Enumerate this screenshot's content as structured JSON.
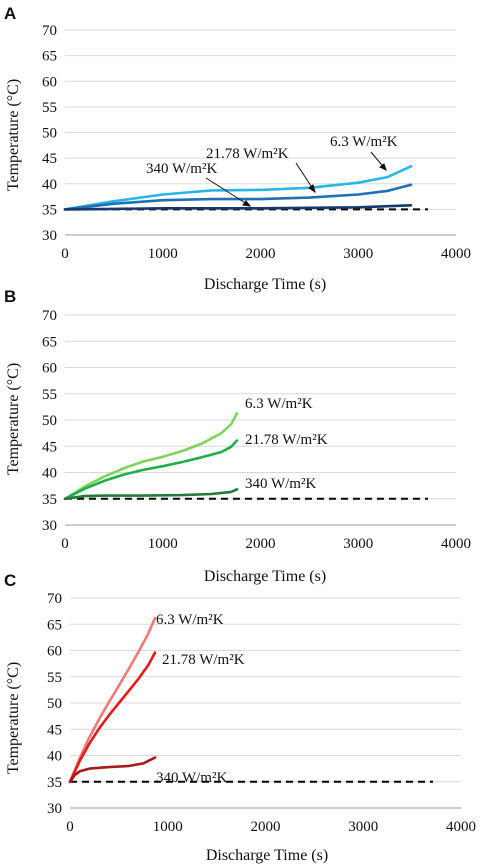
{
  "chart_data": [
    {
      "type": "line",
      "panel": "A",
      "xlabel": "Discharge Time (s)",
      "ylabel": "Temperature (°C)",
      "xlim": [
        0,
        4000
      ],
      "ylim": [
        30,
        70
      ],
      "xticks": [
        "0",
        "1000",
        "2000",
        "3000",
        "4000"
      ],
      "yticks": [
        "30",
        "35",
        "40",
        "45",
        "50",
        "55",
        "60",
        "65",
        "70"
      ],
      "grid": "horizontal",
      "reference_line": {
        "y": 35,
        "style": "dashed",
        "color": "#000000"
      },
      "series": [
        {
          "name": "6.3 W/m²K",
          "color": "#29b6e6",
          "x": [
            0,
            500,
            1000,
            1500,
            2000,
            2500,
            3000,
            3300,
            3540
          ],
          "y": [
            35,
            36.6,
            37.9,
            38.7,
            38.8,
            39.2,
            40.2,
            41.3,
            43.4
          ]
        },
        {
          "name": "21.78 W/m²K",
          "color": "#1f6fb2",
          "x": [
            0,
            500,
            1000,
            1500,
            2000,
            2500,
            3000,
            3300,
            3540
          ],
          "y": [
            35,
            36.1,
            36.8,
            37.0,
            37.0,
            37.3,
            37.9,
            38.6,
            39.8
          ]
        },
        {
          "name": "340 W/m²K",
          "color": "#163a6e",
          "x": [
            0,
            500,
            1000,
            1500,
            2000,
            2500,
            3000,
            3540
          ],
          "y": [
            35,
            35.1,
            35.2,
            35.2,
            35.2,
            35.3,
            35.4,
            35.8
          ]
        }
      ]
    },
    {
      "type": "line",
      "panel": "B",
      "xlabel": "Discharge Time (s)",
      "ylabel": "Temperature (°C)",
      "xlim": [
        0,
        4000
      ],
      "ylim": [
        30,
        70
      ],
      "xticks": [
        "0",
        "1000",
        "2000",
        "3000",
        "4000"
      ],
      "yticks": [
        "30",
        "35",
        "40",
        "45",
        "50",
        "55",
        "60",
        "65",
        "70"
      ],
      "grid": "horizontal",
      "reference_line": {
        "y": 35,
        "style": "dashed",
        "color": "#000000"
      },
      "series": [
        {
          "name": "6.3 W/m²K",
          "color": "#7fd35a",
          "x": [
            0,
            200,
            400,
            600,
            800,
            1000,
            1200,
            1400,
            1600,
            1700,
            1760
          ],
          "y": [
            35,
            37.3,
            39.2,
            40.8,
            42.1,
            43.0,
            44.1,
            45.5,
            47.5,
            49.2,
            51.3
          ]
        },
        {
          "name": "21.78 W/m²K",
          "color": "#1fae4a",
          "x": [
            0,
            200,
            400,
            600,
            800,
            1000,
            1200,
            1400,
            1600,
            1700,
            1760
          ],
          "y": [
            35,
            36.9,
            38.4,
            39.6,
            40.5,
            41.2,
            42.0,
            42.9,
            43.9,
            44.9,
            46.1
          ]
        },
        {
          "name": "340 W/m²K",
          "color": "#237a3a",
          "x": [
            0,
            200,
            400,
            800,
            1200,
            1500,
            1700,
            1760
          ],
          "y": [
            35,
            35.5,
            35.6,
            35.6,
            35.7,
            35.9,
            36.3,
            36.8
          ]
        }
      ]
    },
    {
      "type": "line",
      "panel": "C",
      "xlabel": "Discharge Time (s)",
      "ylabel": "Temperature (°C)",
      "xlim": [
        0,
        4000
      ],
      "ylim": [
        30,
        70
      ],
      "xticks": [
        "0",
        "1000",
        "2000",
        "3000",
        "4000"
      ],
      "yticks": [
        "30",
        "35",
        "40",
        "45",
        "50",
        "55",
        "60",
        "65",
        "70"
      ],
      "grid": "horizontal",
      "reference_line": {
        "y": 35,
        "style": "dashed",
        "color": "#000000"
      },
      "series": [
        {
          "name": "6.3 W/m²K",
          "color": "#f07a7a",
          "x": [
            0,
            100,
            200,
            300,
            400,
            500,
            600,
            700,
            800,
            870
          ],
          "y": [
            35,
            39.5,
            43.5,
            47.0,
            50.2,
            53.3,
            56.5,
            59.7,
            63.2,
            66.2
          ]
        },
        {
          "name": "21.78 W/m²K",
          "color": "#e31b1b",
          "x": [
            0,
            100,
            200,
            300,
            400,
            500,
            600,
            700,
            800,
            870
          ],
          "y": [
            35,
            39.0,
            42.3,
            45.2,
            47.7,
            50.0,
            52.3,
            54.6,
            57.2,
            59.6
          ]
        },
        {
          "name": "340 W/m²K",
          "color": "#a51b1b",
          "x": [
            0,
            50,
            100,
            200,
            400,
            600,
            750,
            870
          ],
          "y": [
            35,
            36.3,
            37.0,
            37.5,
            37.8,
            38.0,
            38.5,
            39.6
          ]
        }
      ]
    }
  ]
}
